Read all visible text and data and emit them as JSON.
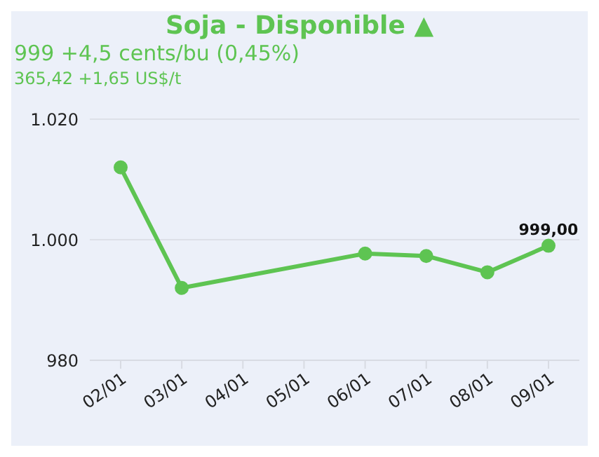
{
  "chart_data": {
    "type": "line",
    "title": "Soja - Disponible ▲",
    "subtitle": "999 +4,5 cents/bu (0,45%)",
    "annotations": [
      "365,42 +1,65 US$/t"
    ],
    "categories": [
      "02/01",
      "03/01",
      "04/01",
      "05/01",
      "06/01",
      "07/01",
      "08/01",
      "09/01"
    ],
    "series": [
      {
        "color": "#5ec452",
        "values": [
          1012,
          992,
          null,
          null,
          997.7,
          997.3,
          994.6,
          999
        ],
        "value_labels": [
          null,
          null,
          null,
          null,
          null,
          null,
          null,
          "999,00"
        ]
      }
    ],
    "ylim": [
      980,
      1020
    ],
    "yticks": [
      {
        "value": 980,
        "label": "980"
      },
      {
        "value": 1000,
        "label": "1.000"
      },
      {
        "value": 1020,
        "label": "1.020"
      }
    ],
    "grid": "y",
    "marker": "circle",
    "line_style": "solid"
  }
}
